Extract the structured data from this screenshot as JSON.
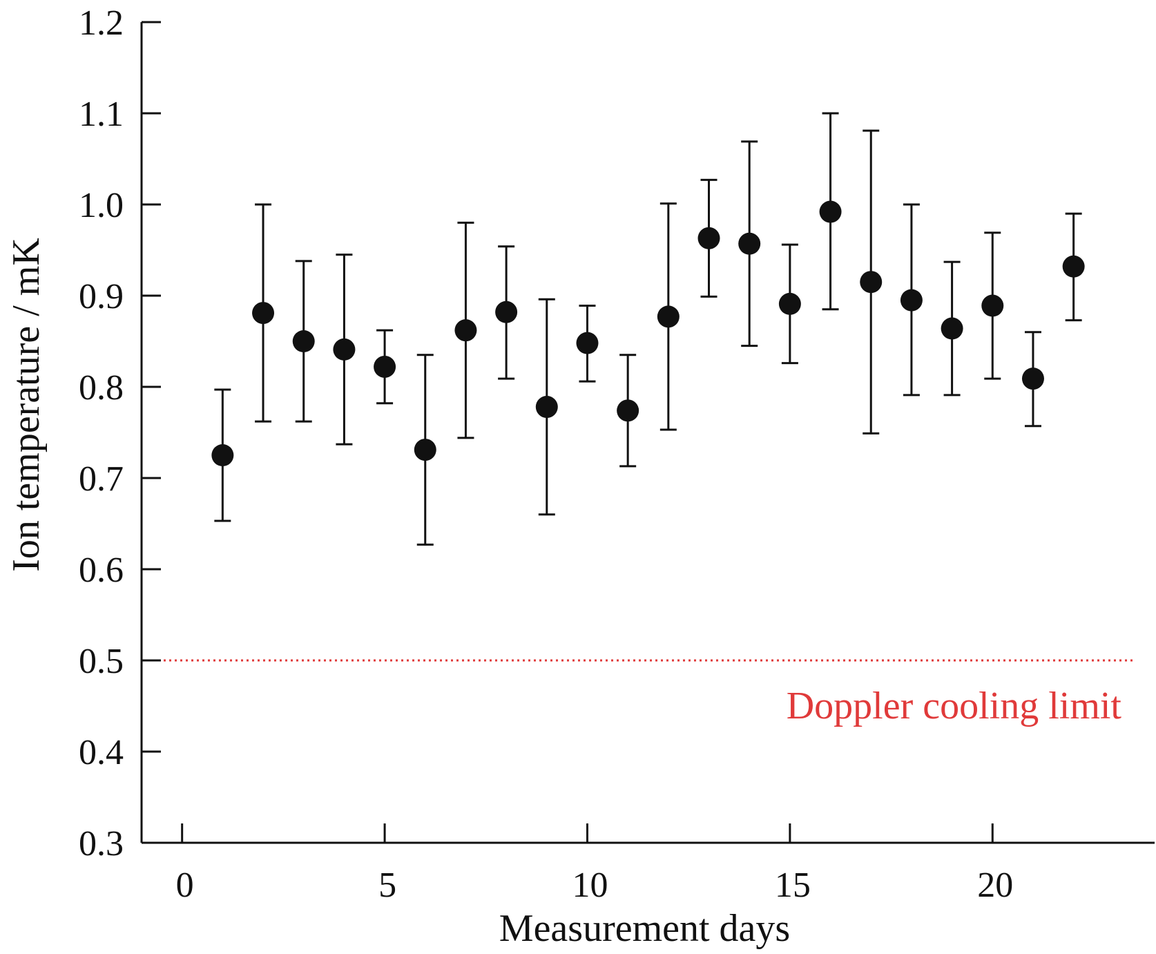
{
  "chart_data": {
    "type": "scatter",
    "title": "",
    "xlabel": "Measurement days",
    "ylabel": "Ion temperature / mK",
    "xlim": [
      -1,
      24
    ],
    "ylim": [
      0.3,
      1.2
    ],
    "xticks": [
      0,
      5,
      10,
      15,
      20
    ],
    "xtick_labels": [
      "0",
      "5",
      "10",
      "15",
      "20"
    ],
    "yticks": [
      0.3,
      0.4,
      0.5,
      0.6,
      0.7,
      0.8,
      0.9,
      1.0,
      1.1,
      1.2
    ],
    "ytick_labels": [
      "0.3",
      "0.4",
      "0.5",
      "0.6",
      "0.7",
      "0.8",
      "0.9",
      "1.0",
      "1.1",
      "1.2"
    ],
    "grid": false,
    "legend": "none",
    "marker_color": "#111111",
    "points": [
      {
        "x": 1,
        "y": 0.725,
        "lo": 0.653,
        "hi": 0.797
      },
      {
        "x": 2,
        "y": 0.881,
        "lo": 0.762,
        "hi": 1.0
      },
      {
        "x": 3,
        "y": 0.85,
        "lo": 0.762,
        "hi": 0.938
      },
      {
        "x": 4,
        "y": 0.841,
        "lo": 0.737,
        "hi": 0.945
      },
      {
        "x": 5,
        "y": 0.822,
        "lo": 0.782,
        "hi": 0.862
      },
      {
        "x": 6,
        "y": 0.731,
        "lo": 0.627,
        "hi": 0.835
      },
      {
        "x": 7,
        "y": 0.862,
        "lo": 0.744,
        "hi": 0.98
      },
      {
        "x": 8,
        "y": 0.882,
        "lo": 0.809,
        "hi": 0.954
      },
      {
        "x": 9,
        "y": 0.778,
        "lo": 0.66,
        "hi": 0.896
      },
      {
        "x": 10,
        "y": 0.848,
        "lo": 0.806,
        "hi": 0.889
      },
      {
        "x": 11,
        "y": 0.774,
        "lo": 0.713,
        "hi": 0.835
      },
      {
        "x": 12,
        "y": 0.877,
        "lo": 0.753,
        "hi": 1.001
      },
      {
        "x": 13,
        "y": 0.963,
        "lo": 0.899,
        "hi": 1.027
      },
      {
        "x": 14,
        "y": 0.957,
        "lo": 0.845,
        "hi": 1.069
      },
      {
        "x": 15,
        "y": 0.891,
        "lo": 0.826,
        "hi": 0.956
      },
      {
        "x": 16,
        "y": 0.992,
        "lo": 0.885,
        "hi": 1.1
      },
      {
        "x": 17,
        "y": 0.915,
        "lo": 0.749,
        "hi": 1.081
      },
      {
        "x": 18,
        "y": 0.895,
        "lo": 0.791,
        "hi": 1.0
      },
      {
        "x": 19,
        "y": 0.864,
        "lo": 0.791,
        "hi": 0.937
      },
      {
        "x": 20,
        "y": 0.889,
        "lo": 0.809,
        "hi": 0.969
      },
      {
        "x": 21,
        "y": 0.809,
        "lo": 0.757,
        "hi": 0.86
      },
      {
        "x": 22,
        "y": 0.932,
        "lo": 0.873,
        "hi": 0.99
      }
    ],
    "reference_line": {
      "y": 0.5,
      "label": "Doppler cooling limit",
      "color": "#e03a3a",
      "style": "dotted"
    }
  }
}
